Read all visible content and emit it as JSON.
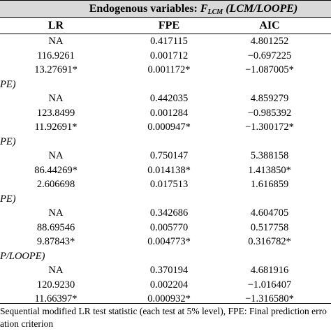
{
  "header": {
    "title_prefix": "Endogenous variables: ",
    "title_symbol": "F",
    "title_subscript": "LCM",
    "title_suffix": " (LCM/LOOPE)"
  },
  "columns": [
    "LR",
    "FPE",
    "AIC"
  ],
  "groups": [
    {
      "label": "",
      "rows": [
        {
          "lr": "NA",
          "fpe": "0.417115",
          "aic": "4.801252"
        },
        {
          "lr": "116.9261",
          "fpe": "0.001712",
          "aic": "−0.697225"
        },
        {
          "lr": "13.27691*",
          "fpe": "0.001172*",
          "aic": "−1.087005*"
        }
      ]
    },
    {
      "label": "PE)",
      "rows": [
        {
          "lr": "NA",
          "fpe": "0.442035",
          "aic": "4.859279"
        },
        {
          "lr": "123.8499",
          "fpe": "0.001284",
          "aic": "−0.985392"
        },
        {
          "lr": "11.92691*",
          "fpe": "0.000947*",
          "aic": "−1.300172*"
        }
      ]
    },
    {
      "label": "PE)",
      "rows": [
        {
          "lr": "NA",
          "fpe": "0.750147",
          "aic": "5.388158"
        },
        {
          "lr": "86.44269*",
          "fpe": "0.014138*",
          "aic": "1.413850*"
        },
        {
          "lr": "2.606698",
          "fpe": "0.017513",
          "aic": "1.616859"
        }
      ]
    },
    {
      "label": "PE)",
      "rows": [
        {
          "lr": "NA",
          "fpe": "0.342686",
          "aic": "4.604705"
        },
        {
          "lr": "88.69546",
          "fpe": "0.005770",
          "aic": "0.517758"
        },
        {
          "lr": "9.87843*",
          "fpe": "0.004773*",
          "aic": "0.316782*"
        }
      ]
    },
    {
      "label": "P/LOOPE)",
      "rows": [
        {
          "lr": "NA",
          "fpe": "0.370194",
          "aic": "4.681916"
        },
        {
          "lr": "120.9230",
          "fpe": "0.002204",
          "aic": "−1.016407"
        },
        {
          "lr": "11.66397*",
          "fpe": "0.000932*",
          "aic": "−1.316580*"
        }
      ]
    }
  ],
  "footnote": {
    "line1": "Sequential modified LR test statistic (each test at 5% level), FPE: Final prediction erro",
    "line2": "ation criterion"
  }
}
